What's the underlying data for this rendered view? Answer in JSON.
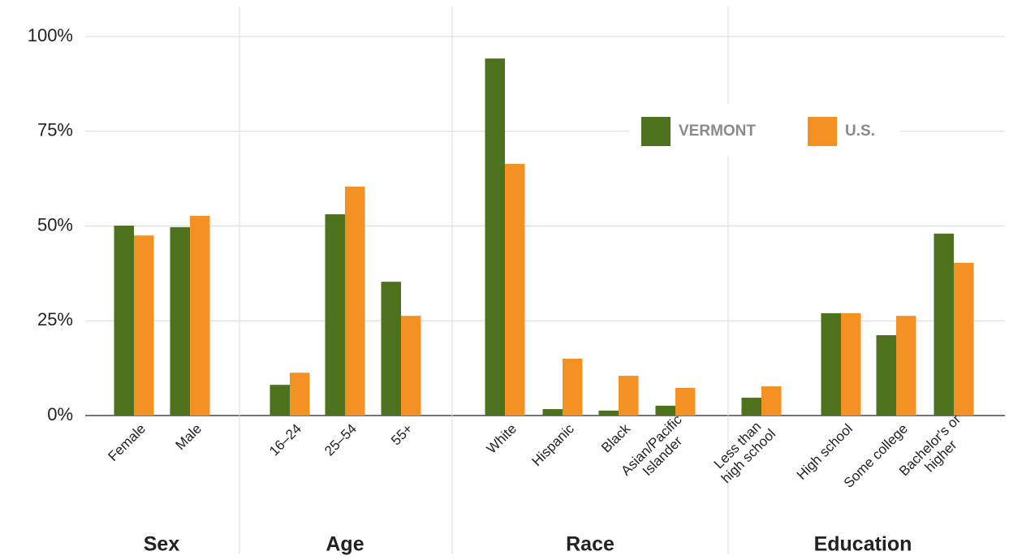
{
  "chart_data": {
    "type": "bar",
    "categories": [
      "Female",
      "Male",
      "16–24",
      "25–54",
      "55+",
      "White",
      "Hispanic",
      "Black",
      "Asian/Pacific\nIslander",
      "Less than\nhigh school",
      "High school",
      "Some college",
      "Bachelor's or\nhigher"
    ],
    "groups": [
      "Sex",
      "Age",
      "Race",
      "Education"
    ],
    "series": [
      {
        "name": "VERMONT",
        "color": "#4e711d",
        "values": [
          50.1,
          49.7,
          8.1,
          53.1,
          35.3,
          94.2,
          1.7,
          1.3,
          2.6,
          4.7,
          27,
          21.2,
          48
        ]
      },
      {
        "name": "U.S.",
        "color": "#f39223",
        "values": [
          47.5,
          52.7,
          11.3,
          60.4,
          26.3,
          66.4,
          15,
          10.5,
          7.3,
          7.7,
          27,
          26.3,
          40.3
        ]
      }
    ],
    "ylim": [
      0,
      100
    ],
    "yticks": [
      {
        "value": 0,
        "label": "0%"
      },
      {
        "value": 25,
        "label": "25%"
      },
      {
        "value": 50,
        "label": "50%"
      },
      {
        "value": 75,
        "label": "75%"
      },
      {
        "value": 100,
        "label": "100%"
      }
    ],
    "grid": true
  }
}
